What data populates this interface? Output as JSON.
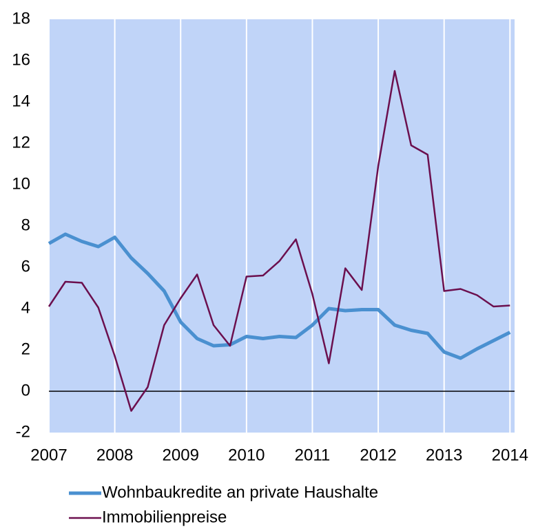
{
  "chart_data": {
    "type": "line",
    "x": [
      2007,
      2007.25,
      2007.5,
      2007.75,
      2008,
      2008.25,
      2008.5,
      2008.75,
      2009,
      2009.25,
      2009.5,
      2009.75,
      2010,
      2010.25,
      2010.5,
      2010.75,
      2011,
      2011.25,
      2011.5,
      2011.75,
      2012,
      2012.25,
      2012.5,
      2012.75,
      2013,
      2013.25,
      2013.5,
      2013.75,
      2014
    ],
    "series": [
      {
        "name": "Wohnbaukredite an private Haushalte",
        "color": "#4a90d0",
        "values": [
          7.15,
          7.6,
          7.25,
          7.0,
          7.45,
          6.45,
          5.7,
          4.85,
          3.35,
          2.55,
          2.2,
          2.25,
          2.65,
          2.55,
          2.65,
          2.6,
          3.2,
          4.0,
          3.9,
          3.95,
          3.95,
          3.2,
          2.95,
          2.8,
          1.9,
          1.6,
          2.05,
          2.45,
          2.85
        ]
      },
      {
        "name": "Immobilienpreise",
        "color": "#6b0f4e",
        "values": [
          4.1,
          5.3,
          5.25,
          4.05,
          1.7,
          -0.95,
          0.2,
          3.2,
          4.5,
          5.65,
          3.2,
          2.2,
          5.55,
          5.6,
          6.3,
          7.35,
          4.7,
          1.35,
          5.95,
          4.9,
          10.9,
          15.5,
          11.9,
          11.45,
          4.85,
          4.95,
          4.65,
          4.1,
          4.15
        ]
      }
    ],
    "xlim": [
      2007,
      2014.07
    ],
    "xticks": [
      2007,
      2008,
      2009,
      2010,
      2011,
      2012,
      2013,
      2014
    ],
    "ylim": [
      -2,
      18
    ],
    "yticks": [
      -2,
      0,
      2,
      4,
      6,
      8,
      10,
      12,
      14,
      16,
      18
    ]
  }
}
